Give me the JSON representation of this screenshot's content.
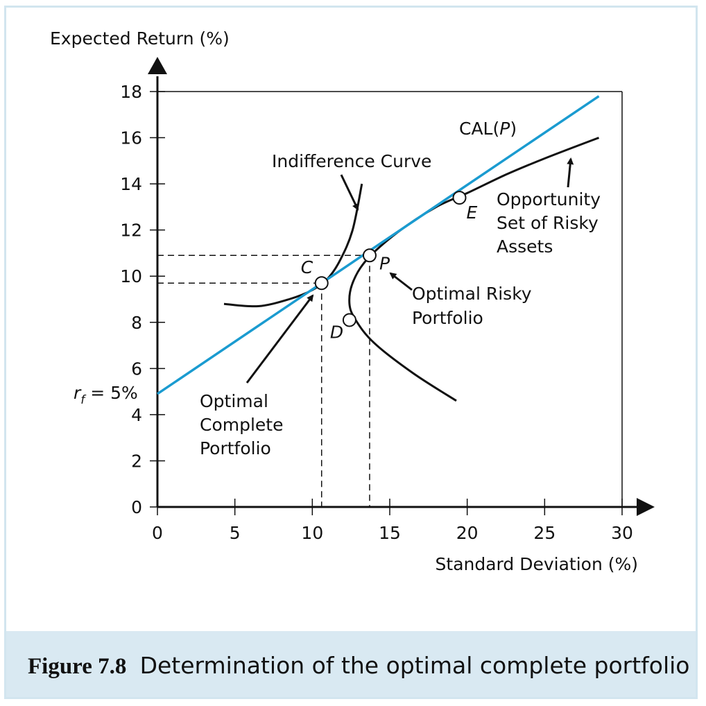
{
  "caption": {
    "figure_number": "Figure 7.8",
    "text": "Determination of the optimal complete portfolio"
  },
  "colors": {
    "cal_line": "#1a9bd0",
    "curves": "#111111",
    "caption_background": "#d9e9f2",
    "frame_border": "#d2e5ef"
  },
  "chart_data": {
    "type": "line",
    "xlabel": "Standard Deviation (%)",
    "ylabel": "Expected Return (%)",
    "xlim": [
      0,
      30
    ],
    "ylim": [
      0,
      18
    ],
    "x_ticks": [
      0,
      5,
      10,
      15,
      20,
      25,
      30
    ],
    "y_ticks": [
      0,
      2,
      4,
      6,
      8,
      10,
      12,
      14,
      16,
      18
    ],
    "rf_label": "r",
    "rf_subscript": "f",
    "rf_value_text": " = 5%",
    "series": [
      {
        "name": "CAL(P)",
        "kind": "cal",
        "x": [
          0,
          28.5
        ],
        "y": [
          4.9,
          17.8
        ]
      },
      {
        "kind": "opportunity_set",
        "x": [
          19.3,
          16.5,
          14.0,
          12.8,
          12.4,
          12.6,
          13.5,
          15.5,
          18.0,
          20.0,
          22.5,
          25.0,
          28.5
        ],
        "y": [
          4.6,
          5.8,
          7.1,
          8.1,
          8.8,
          9.7,
          10.7,
          11.9,
          13.0,
          13.6,
          14.4,
          15.1,
          16.0
        ]
      },
      {
        "kind": "indifference_curve",
        "x": [
          4.3,
          6.5,
          8.5,
          10.0,
          11.0,
          11.8,
          12.6,
          13.2
        ],
        "y": [
          8.8,
          8.7,
          9.0,
          9.4,
          9.9,
          10.7,
          12.0,
          14.0
        ]
      }
    ],
    "points": [
      {
        "label": "C",
        "x": 10.6,
        "y": 9.7
      },
      {
        "label": "P",
        "x": 13.7,
        "y": 10.9
      },
      {
        "label": "D",
        "x": 12.4,
        "y": 8.1
      },
      {
        "label": "E",
        "x": 19.5,
        "y": 13.4
      }
    ],
    "guides": [
      {
        "x": 10.6,
        "y": 9.7
      },
      {
        "x": 13.7,
        "y": 10.9
      }
    ],
    "annotations": {
      "cal": "CAL(",
      "cal_italic": "P",
      "cal_close": ")",
      "indifference": "Indifference Curve",
      "opportunity": [
        "Opportunity",
        "Set of Risky",
        "Assets"
      ],
      "optimal_risky": [
        "Optimal Risky",
        "Portfolio"
      ],
      "optimal_complete": [
        "Optimal",
        "Complete",
        "Portfolio"
      ]
    }
  }
}
